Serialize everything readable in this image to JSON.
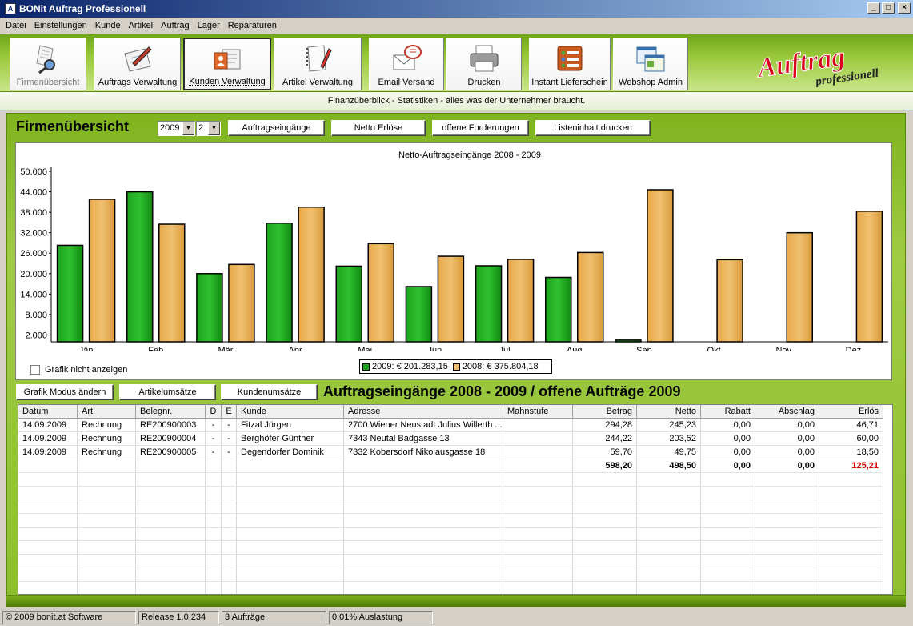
{
  "window": {
    "title": "BONit Auftrag Professionell",
    "icon": "A"
  },
  "menu": [
    "Datei",
    "Einstellungen",
    "Kunde",
    "Artikel",
    "Auftrag",
    "Lager",
    "Reparaturen"
  ],
  "toolbar": {
    "items": [
      {
        "label": "Firmenübersicht",
        "icon": "magnifier-document-icon",
        "state": "disabled"
      },
      {
        "label": "Auftrags Verwaltung",
        "icon": "pen-form-icon",
        "state": "normal"
      },
      {
        "label": "Kunden Verwaltung",
        "icon": "contact-card-icon",
        "state": "active"
      },
      {
        "label": "Artikel Verwaltung",
        "icon": "notebook-pencil-icon",
        "state": "normal"
      },
      {
        "label": "Email Versand",
        "icon": "envelope-bubble-icon",
        "state": "normal"
      },
      {
        "label": "Drucken",
        "icon": "printer-icon",
        "state": "normal"
      },
      {
        "label": "Instant Lieferschein",
        "icon": "checklist-icon",
        "state": "normal"
      },
      {
        "label": "Webshop Admin",
        "icon": "browser-windows-icon",
        "state": "normal"
      }
    ],
    "logo_main": "Auftrag",
    "logo_sub": "professionell"
  },
  "info_strip": "Finanzüberblick - Statistiken - alles was der Unternehmer braucht.",
  "header": {
    "title": "Firmenübersicht",
    "year_value": "2009",
    "count_value": "2",
    "buttons": [
      "Auftragseingänge",
      "Netto Erlöse",
      "offene Forderungen",
      "Listeninhalt drucken"
    ]
  },
  "chart_data": {
    "type": "bar",
    "title": "Netto-Auftragseingänge 2008 - 2009",
    "categories": [
      "Jän",
      "Feb",
      "Mär",
      "Apr",
      "Mai",
      "Jun",
      "Jul",
      "Aug",
      "Sep",
      "Okt",
      "Nov",
      "Dez"
    ],
    "series": [
      {
        "name": "2009",
        "color": "#1ea41e",
        "values": [
          28300,
          44000,
          20000,
          34800,
          22200,
          16200,
          22300,
          18900,
          500,
          0,
          0,
          0
        ]
      },
      {
        "name": "2008",
        "color": "#f0c070",
        "values": [
          41800,
          34500,
          22700,
          39500,
          28800,
          25100,
          24200,
          26200,
          44600,
          24100,
          32000,
          38300
        ]
      }
    ],
    "yticks": [
      "50.000",
      "44.000",
      "38.000",
      "32.000",
      "26.000",
      "20.000",
      "14.000",
      "8.000",
      "2.000"
    ],
    "ytick_values": [
      50000,
      44000,
      38000,
      32000,
      26000,
      20000,
      14000,
      8000,
      2000
    ],
    "ylim": [
      0,
      50000
    ],
    "legend": [
      "2009:  € 201.283,15",
      "2008:  € 375.804,18"
    ],
    "legend_position": "bottom-center"
  },
  "chart_toggle_label": "Grafik nicht anzeigen",
  "second_row": {
    "buttons": [
      "Grafik Modus ändern",
      "Artikelumsätze",
      "Kundenumsätze"
    ],
    "title": "Auftragseingänge 2008 - 2009 / offene Aufträge 2009"
  },
  "table": {
    "columns": [
      "Datum",
      "Art",
      "Belegnr.",
      "D",
      "E",
      "Kunde",
      "Adresse",
      "Mahnstufe",
      "Betrag",
      "Netto",
      "Rabatt",
      "Abschlag",
      "Erlös"
    ],
    "rows": [
      [
        "14.09.2009",
        "Rechnung",
        "RE200900003",
        "-",
        "-",
        "Fitzal Jürgen",
        "2700 Wiener Neustadt Julius Willerth ...",
        "",
        "294,28",
        "245,23",
        "0,00",
        "0,00",
        "46,71"
      ],
      [
        "14.09.2009",
        "Rechnung",
        "RE200900004",
        "-",
        "-",
        "Berghöfer Günther",
        "7343 Neutal Badgasse 13",
        "",
        "244,22",
        "203,52",
        "0,00",
        "0,00",
        "60,00"
      ],
      [
        "14.09.2009",
        "Rechnung",
        "RE200900005",
        "-",
        "-",
        "Degendorfer Dominik",
        "7332 Kobersdorf Nikolausgasse 18",
        "",
        "59,70",
        "49,75",
        "0,00",
        "0,00",
        "18,50"
      ]
    ],
    "totals": {
      "betrag": "598,20",
      "netto": "498,50",
      "rabatt": "0,00",
      "abschlag": "0,00",
      "erloes": "125,21"
    }
  },
  "status": [
    "© 2009 bonit.at Software",
    "Release 1.0.234",
    "3 Aufträge",
    "0,01% Auslastung"
  ]
}
